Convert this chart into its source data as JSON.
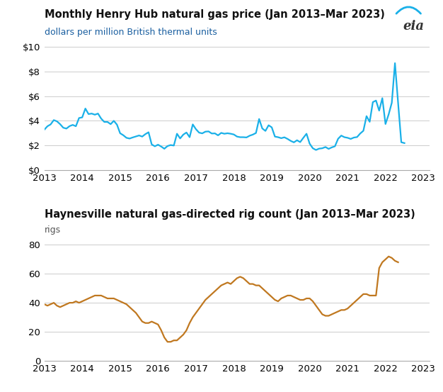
{
  "title1": "Monthly Henry Hub natural gas price (Jan 2013–Mar 2023)",
  "subtitle1": "dollars per million British thermal units",
  "title2": "Haynesville natural gas-directed rig count (Jan 2013–Mar 2023)",
  "subtitle2": "rigs",
  "line1_color": "#1ab0e8",
  "line2_color": "#c07820",
  "bg_color": "#ffffff",
  "grid_color": "#cccccc",
  "eia_color": "#333333",
  "eia_arc_color": "#1ab0e8",
  "subtitle1_color": "#1a5fa0",
  "subtitle2_color": "#555555",
  "title_color": "#111111",
  "price_data": [
    3.28,
    3.56,
    3.71,
    4.06,
    3.96,
    3.73,
    3.44,
    3.37,
    3.57,
    3.67,
    3.56,
    4.23,
    4.28,
    5.0,
    4.55,
    4.59,
    4.5,
    4.59,
    4.18,
    3.91,
    3.91,
    3.73,
    4.0,
    3.69,
    2.99,
    2.83,
    2.62,
    2.56,
    2.65,
    2.73,
    2.81,
    2.72,
    2.92,
    3.07,
    2.08,
    1.93,
    2.06,
    1.91,
    1.73,
    1.95,
    2.03,
    1.99,
    2.95,
    2.57,
    2.88,
    3.05,
    2.67,
    3.71,
    3.32,
    3.04,
    2.98,
    3.12,
    3.14,
    2.97,
    2.98,
    2.82,
    3.02,
    2.95,
    2.99,
    2.95,
    2.89,
    2.72,
    2.67,
    2.67,
    2.65,
    2.79,
    2.88,
    3.01,
    4.15,
    3.38,
    3.18,
    3.64,
    3.47,
    2.72,
    2.67,
    2.59,
    2.66,
    2.53,
    2.37,
    2.25,
    2.42,
    2.27,
    2.62,
    2.95,
    2.14,
    1.77,
    1.63,
    1.74,
    1.77,
    1.87,
    1.72,
    1.84,
    1.93,
    2.54,
    2.8,
    2.67,
    2.62,
    2.53,
    2.64,
    2.68,
    2.97,
    3.19,
    4.38,
    3.92,
    5.52,
    5.65,
    4.83,
    5.84,
    3.74,
    4.52,
    5.47,
    8.69,
    5.44,
    2.26,
    2.19
  ],
  "rig_data": [
    39,
    38,
    39,
    40,
    38,
    37,
    38,
    39,
    40,
    40,
    41,
    40,
    41,
    42,
    43,
    44,
    45,
    45,
    45,
    44,
    43,
    43,
    43,
    42,
    41,
    40,
    39,
    37,
    35,
    33,
    30,
    27,
    26,
    26,
    27,
    26,
    25,
    21,
    16,
    13,
    13,
    14,
    14,
    16,
    18,
    21,
    26,
    30,
    33,
    36,
    39,
    42,
    44,
    46,
    48,
    50,
    52,
    53,
    54,
    53,
    55,
    57,
    58,
    57,
    55,
    53,
    53,
    52,
    52,
    50,
    48,
    46,
    44,
    42,
    41,
    43,
    44,
    45,
    45,
    44,
    43,
    42,
    42,
    43,
    43,
    41,
    38,
    35,
    32,
    31,
    31,
    32,
    33,
    34,
    35,
    35,
    36,
    38,
    40,
    42,
    44,
    46,
    46,
    45,
    45,
    45,
    64,
    68,
    70,
    72,
    71,
    69,
    68
  ],
  "x_tick_labels": [
    "2013",
    "2014",
    "2015",
    "2016",
    "2017",
    "2018",
    "2019",
    "2020",
    "2021",
    "2022",
    "2023"
  ],
  "x_tick_positions": [
    0,
    12,
    24,
    36,
    48,
    60,
    72,
    84,
    96,
    108,
    120
  ],
  "price_yticks": [
    0,
    2,
    4,
    6,
    8,
    10
  ],
  "price_ytick_labels": [
    "$0",
    "$2",
    "$4",
    "$6",
    "$8",
    "$10"
  ],
  "rig_yticks": [
    0,
    20,
    40,
    60,
    80
  ],
  "rig_ytick_labels": [
    "0",
    "20",
    "40",
    "60",
    "80"
  ],
  "ylim1": [
    0,
    10
  ],
  "ylim2": [
    0,
    85
  ],
  "xlim_max": 122
}
